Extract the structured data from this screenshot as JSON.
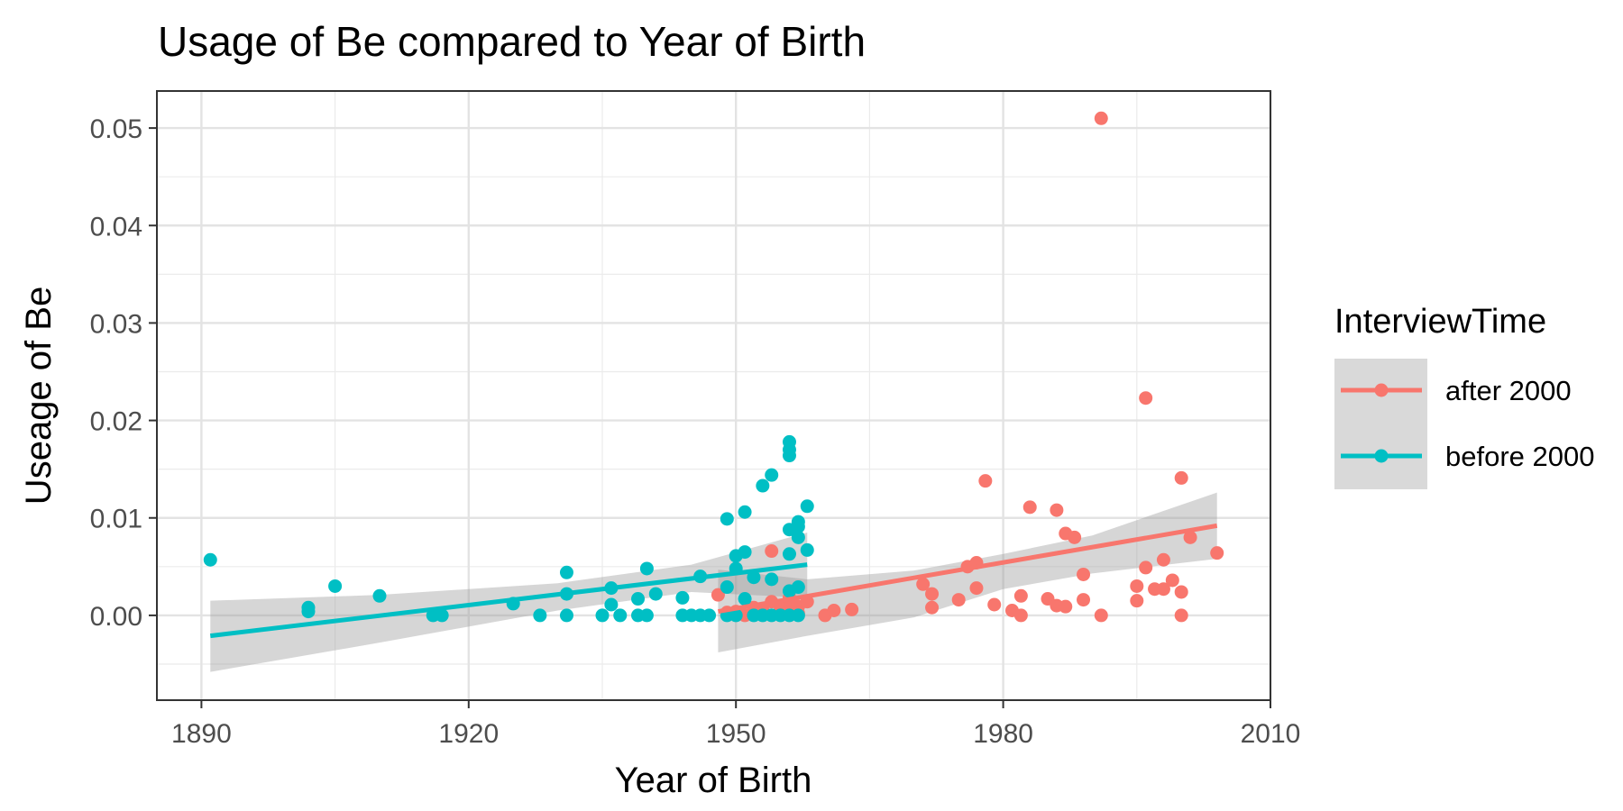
{
  "chart_data": {
    "type": "scatter",
    "title": "Usage of Be compared to Year of Birth",
    "xlabel": "Year of Birth",
    "ylabel": "Useage of Be",
    "xlim": [
      1885,
      2010
    ],
    "ylim": [
      -0.0087,
      0.0538
    ],
    "x_ticks": [
      1890,
      1920,
      1950,
      1980,
      2010
    ],
    "y_ticks": [
      0.0,
      0.01,
      0.02,
      0.03,
      0.04,
      0.05
    ],
    "y_tick_labels": [
      "0.00",
      "0.01",
      "0.02",
      "0.03",
      "0.04",
      "0.05"
    ],
    "grid": true,
    "legend": {
      "title": "InterviewTime",
      "position": "right",
      "entries": [
        "after 2000",
        "before 2000"
      ]
    },
    "series": [
      {
        "name": "after 2000",
        "color": "#F8766D",
        "points": [
          [
            1948,
            0.0021
          ],
          [
            1949,
            0.0003
          ],
          [
            1950,
            0.0004
          ],
          [
            1951,
            0.0
          ],
          [
            1952,
            0.0008
          ],
          [
            1953,
            0.0006
          ],
          [
            1954,
            0.0066
          ],
          [
            1954,
            0.0014
          ],
          [
            1955,
            0.0007
          ],
          [
            1956,
            0.0018
          ],
          [
            1956,
            0.0011
          ],
          [
            1957,
            0.0009
          ],
          [
            1957,
            0.0002
          ],
          [
            1958,
            0.0014
          ],
          [
            1960,
            0.0
          ],
          [
            1961,
            0.0005
          ],
          [
            1963,
            0.0006
          ],
          [
            1971,
            0.0032
          ],
          [
            1972,
            0.0022
          ],
          [
            1972,
            0.0008
          ],
          [
            1975,
            0.0016
          ],
          [
            1976,
            0.005
          ],
          [
            1977,
            0.0054
          ],
          [
            1977,
            0.0028
          ],
          [
            1978,
            0.0138
          ],
          [
            1979,
            0.0011
          ],
          [
            1981,
            0.0005
          ],
          [
            1982,
            0.002
          ],
          [
            1982,
            0.0
          ],
          [
            1983,
            0.0111
          ],
          [
            1985,
            0.0017
          ],
          [
            1986,
            0.0108
          ],
          [
            1986,
            0.001
          ],
          [
            1987,
            0.0084
          ],
          [
            1987,
            0.0009
          ],
          [
            1988,
            0.008
          ],
          [
            1989,
            0.0042
          ],
          [
            1989,
            0.0016
          ],
          [
            1991,
            0.0
          ],
          [
            1991,
            0.051
          ],
          [
            1995,
            0.0015
          ],
          [
            1995,
            0.003
          ],
          [
            1996,
            0.0223
          ],
          [
            1996,
            0.0049
          ],
          [
            1997,
            0.0027
          ],
          [
            1998,
            0.0027
          ],
          [
            1998,
            0.0057
          ],
          [
            1999,
            0.0036
          ],
          [
            2000,
            0.0024
          ],
          [
            2000,
            0.0
          ],
          [
            2000,
            0.0141
          ],
          [
            2001,
            0.008
          ],
          [
            2004,
            0.0064
          ]
        ],
        "trend": {
          "x": [
            1948,
            2004
          ],
          "y": [
            0.0004,
            0.0092
          ]
        },
        "band": {
          "x": [
            1948,
            1958,
            1970,
            1980,
            1990,
            2004
          ],
          "upper": [
            0.0047,
            0.0037,
            0.0046,
            0.0063,
            0.0082,
            0.0126
          ],
          "lower": [
            -0.0038,
            -0.0021,
            -0.0002,
            0.0027,
            0.0043,
            0.0058
          ]
        }
      },
      {
        "name": "before 2000",
        "color": "#00BFC4",
        "points": [
          [
            1891,
            0.0057
          ],
          [
            1902,
            0.0008
          ],
          [
            1902,
            0.0004
          ],
          [
            1905,
            0.003
          ],
          [
            1910,
            0.002
          ],
          [
            1916,
            0.0
          ],
          [
            1917,
            0.0
          ],
          [
            1925,
            0.0012
          ],
          [
            1928,
            0.0
          ],
          [
            1931,
            0.0044
          ],
          [
            1931,
            0.0022
          ],
          [
            1931,
            0.0
          ],
          [
            1935,
            0.0
          ],
          [
            1936,
            0.0028
          ],
          [
            1936,
            0.0011
          ],
          [
            1937,
            0.0
          ],
          [
            1939,
            0.0017
          ],
          [
            1939,
            0.0
          ],
          [
            1940,
            0.0048
          ],
          [
            1940,
            0.0
          ],
          [
            1941,
            0.0022
          ],
          [
            1944,
            0.0018
          ],
          [
            1944,
            0.0
          ],
          [
            1945,
            0.0
          ],
          [
            1946,
            0.004
          ],
          [
            1946,
            0.0
          ],
          [
            1947,
            0.0
          ],
          [
            1949,
            0.0099
          ],
          [
            1949,
            0.0029
          ],
          [
            1949,
            0.0
          ],
          [
            1950,
            0.0061
          ],
          [
            1950,
            0.0048
          ],
          [
            1950,
            0.0
          ],
          [
            1951,
            0.0106
          ],
          [
            1951,
            0.0065
          ],
          [
            1951,
            0.0017
          ],
          [
            1952,
            0.0039
          ],
          [
            1952,
            0.0
          ],
          [
            1953,
            0.0133
          ],
          [
            1953,
            0.0
          ],
          [
            1954,
            0.0144
          ],
          [
            1954,
            0.0037
          ],
          [
            1954,
            0.0
          ],
          [
            1955,
            0.0
          ],
          [
            1956,
            0.0178
          ],
          [
            1956,
            0.017
          ],
          [
            1956,
            0.0164
          ],
          [
            1956,
            0.0088
          ],
          [
            1956,
            0.0063
          ],
          [
            1956,
            0.0025
          ],
          [
            1956,
            0.0
          ],
          [
            1957,
            0.0096
          ],
          [
            1957,
            0.0091
          ],
          [
            1957,
            0.008
          ],
          [
            1957,
            0.0029
          ],
          [
            1957,
            0.0
          ],
          [
            1958,
            0.0112
          ],
          [
            1958,
            0.0067
          ]
        ],
        "trend": {
          "x": [
            1891,
            1958
          ],
          "y": [
            -0.0021,
            0.0052
          ]
        },
        "band": {
          "x": [
            1891,
            1910,
            1930,
            1945,
            1958
          ],
          "upper": [
            0.0015,
            0.0021,
            0.0033,
            0.0052,
            0.0085
          ],
          "lower": [
            -0.0058,
            -0.0028,
            0.0005,
            0.0024,
            0.0018
          ]
        }
      }
    ]
  }
}
